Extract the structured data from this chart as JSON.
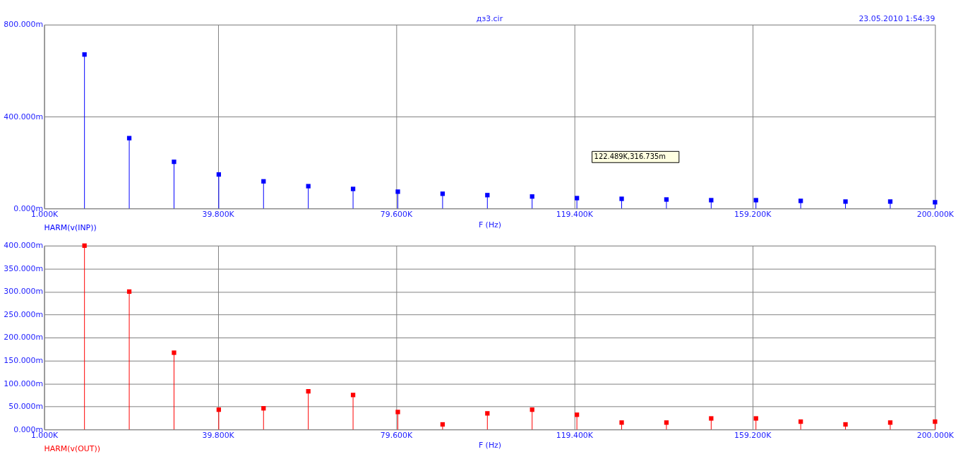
{
  "chart_data": [
    {
      "type": "lollipop",
      "title": "дз3.cir",
      "xlabel": "F (Hz)",
      "annotations": [
        "23.05.2010 1:54:39",
        "122.489K,316.735m"
      ],
      "marker": "square",
      "grid": true,
      "legend": "bottom left",
      "x": [
        10000,
        20000,
        30000,
        40000,
        50000,
        60000,
        70000,
        80000,
        90000,
        100000,
        110000,
        120000,
        130000,
        140000,
        150000,
        160000,
        170000,
        180000,
        190000,
        200000
      ],
      "series": [
        {
          "name": "HARM(v(INP))",
          "color": "#0000ff",
          "values": [
            670,
            306,
            203,
            148,
            118,
            97,
            85,
            73,
            64,
            58,
            52,
            45,
            42,
            39,
            36,
            36,
            33,
            30,
            30,
            27
          ]
        }
      ],
      "xlim": [
        1000,
        200000
      ],
      "xticks": [
        {
          "value": 1000,
          "label": "1.000K"
        },
        {
          "value": 39800,
          "label": "39.800K"
        },
        {
          "value": 79600,
          "label": "79.600K"
        },
        {
          "value": 119400,
          "label": "119.400K"
        },
        {
          "value": 159200,
          "label": "159.200K"
        },
        {
          "value": 200000,
          "label": "200.000K"
        }
      ],
      "ylim": [
        0,
        800
      ],
      "yticks": [
        {
          "value": 0,
          "label": "0.000m"
        },
        {
          "value": 400,
          "label": "400.000m"
        },
        {
          "value": 800,
          "label": "800.000m"
        }
      ]
    },
    {
      "type": "lollipop",
      "xlabel": "F (Hz)",
      "marker": "square",
      "grid": true,
      "legend": "bottom left",
      "x": [
        10000,
        20000,
        30000,
        40000,
        50000,
        60000,
        70000,
        80000,
        90000,
        100000,
        110000,
        120000,
        130000,
        140000,
        150000,
        160000,
        170000,
        180000,
        190000,
        200000
      ],
      "series": [
        {
          "name": "HARM(v(OUT))",
          "color": "#ff0000",
          "values": [
            400,
            300,
            167,
            43,
            46,
            83,
            75,
            38,
            11,
            35,
            43,
            32,
            15,
            15,
            24,
            24,
            17,
            11,
            15,
            17
          ]
        }
      ],
      "xlim": [
        1000,
        200000
      ],
      "xticks": [
        {
          "value": 1000,
          "label": "1.000K"
        },
        {
          "value": 39800,
          "label": "39.800K"
        },
        {
          "value": 79600,
          "label": "79.600K"
        },
        {
          "value": 119400,
          "label": "119.400K"
        },
        {
          "value": 159200,
          "label": "159.200K"
        },
        {
          "value": 200000,
          "label": "200.000K"
        }
      ],
      "ylim": [
        0,
        400
      ],
      "yticks": [
        {
          "value": 0,
          "label": "0.000m"
        },
        {
          "value": 50,
          "label": "50.000m"
        },
        {
          "value": 100,
          "label": "100.000m"
        },
        {
          "value": 150,
          "label": "150.000m"
        },
        {
          "value": 200,
          "label": "200.000m"
        },
        {
          "value": 250,
          "label": "250.000m"
        },
        {
          "value": 300,
          "label": "300.000m"
        },
        {
          "value": 350,
          "label": "350.000m"
        },
        {
          "value": 400,
          "label": "400.000m"
        }
      ]
    }
  ]
}
